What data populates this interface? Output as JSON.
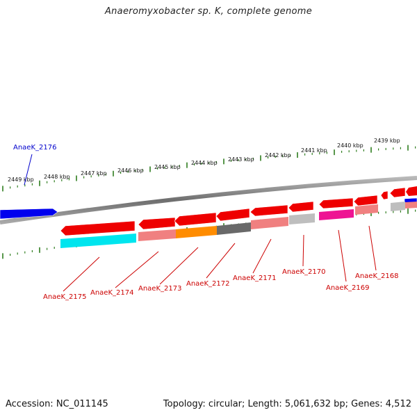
{
  "title": "Anaeromyxobacter sp. K, complete genome",
  "footer": {
    "accession": "Accession: NC_011145",
    "summary": "Topology: circular; Length: 5,061,632 bp; Genes: 4,512"
  },
  "colors": {
    "backbone": "#888888",
    "tick": "#2e7d1e",
    "label_red": "#cc0000",
    "label_blue": "#0000cc"
  },
  "scale_labels": [
    "2449 kbp",
    "2448 kbp",
    "2447 kbp",
    "2446 kbp",
    "2445 kbp",
    "2444 kbp",
    "2443 kbp",
    "2442 kbp",
    "2441 kbp",
    "2440 kbp",
    "2439 kbp"
  ],
  "labels": [
    "AnaeK_2176",
    "AnaeK_2175",
    "AnaeK_2174",
    "AnaeK_2173",
    "AnaeK_2172",
    "AnaeK_2171",
    "AnaeK_2170",
    "AnaeK_2169",
    "AnaeK_2168"
  ],
  "genes": [
    {
      "color": "#0000ee",
      "strand": "top"
    },
    {
      "color": "#ee0000",
      "strand": "bottom"
    },
    {
      "color": "#ee0000",
      "strand": "bottom"
    },
    {
      "color": "#ee0000",
      "strand": "bottom"
    },
    {
      "color": "#ee0000",
      "strand": "bottom"
    },
    {
      "color": "#ee0000",
      "strand": "bottom"
    },
    {
      "color": "#ee0000",
      "strand": "bottom"
    },
    {
      "color": "#ee0000",
      "strand": "bottom"
    },
    {
      "color": "#ee0000",
      "strand": "bottom"
    },
    {
      "color": "#ee0000",
      "strand": "bottom"
    },
    {
      "color": "#ee0000",
      "strand": "bottom"
    },
    {
      "color": "#0000ee",
      "strand": "top"
    }
  ],
  "features": [
    {
      "color": "#00e5ee"
    },
    {
      "color": "#f08080"
    },
    {
      "color": "#ff8c00"
    },
    {
      "color": "#696969"
    },
    {
      "color": "#f08080"
    },
    {
      "color": "#bebebe"
    },
    {
      "color": "#ee1493"
    },
    {
      "color": "#f08080"
    },
    {
      "color": "#bebebe"
    },
    {
      "color": "#f08080"
    }
  ]
}
